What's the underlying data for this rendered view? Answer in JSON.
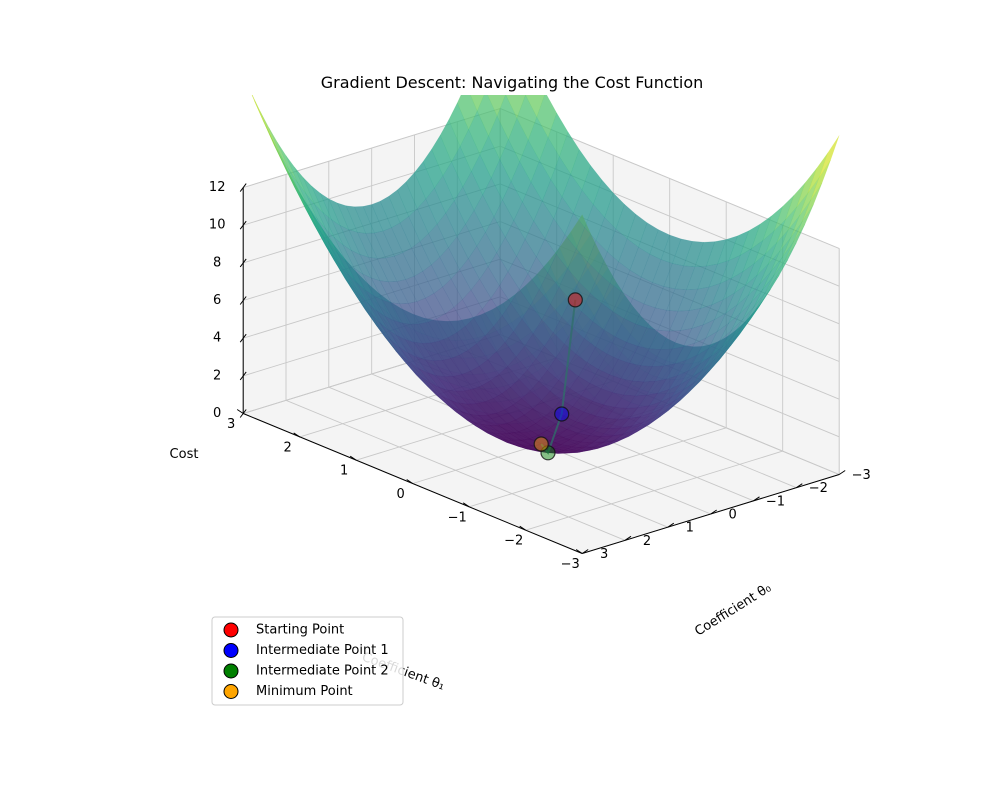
{
  "chart_data": {
    "type": "surface3d",
    "title": "Gradient Descent: Navigating the Cost Function",
    "xlabel": "Coefficient θ₀",
    "ylabel": "Coefficient θ₁",
    "zlabel": "Cost",
    "x_ticks": [
      "−3",
      "−2",
      "−1",
      "0",
      "1",
      "2",
      "3"
    ],
    "y_ticks": [
      "−3",
      "−2",
      "−1",
      "0",
      "1",
      "2",
      "3"
    ],
    "z_ticks": [
      "0",
      "2",
      "4",
      "6",
      "8",
      "10",
      "12"
    ],
    "xlim": [
      -3,
      3
    ],
    "ylim": [
      -3,
      3
    ],
    "zlim": [
      0,
      12
    ],
    "surface": {
      "function": "theta0^2 + theta1^2",
      "colormap": "viridis",
      "alpha": 0.7
    },
    "grid": true,
    "path_color": "#2f6f6a",
    "points": [
      {
        "name": "Starting Point",
        "color": "#ff0000",
        "x": 2.5,
        "y": -2.5,
        "z": 12.5
      },
      {
        "name": "Intermediate Point 1",
        "color": "#0000ff",
        "x": 1.5,
        "y": -1.5,
        "z": 4.5
      },
      {
        "name": "Intermediate Point 2",
        "color": "#008000",
        "x": 0.5,
        "y": -0.5,
        "z": 0.5
      },
      {
        "name": "Minimum Point",
        "color": "#ffa500",
        "x": 0,
        "y": 0,
        "z": 0
      }
    ],
    "legend": {
      "position": "lower-left",
      "entries": [
        "Starting Point",
        "Intermediate Point 1",
        "Intermediate Point 2",
        "Minimum Point"
      ]
    }
  }
}
